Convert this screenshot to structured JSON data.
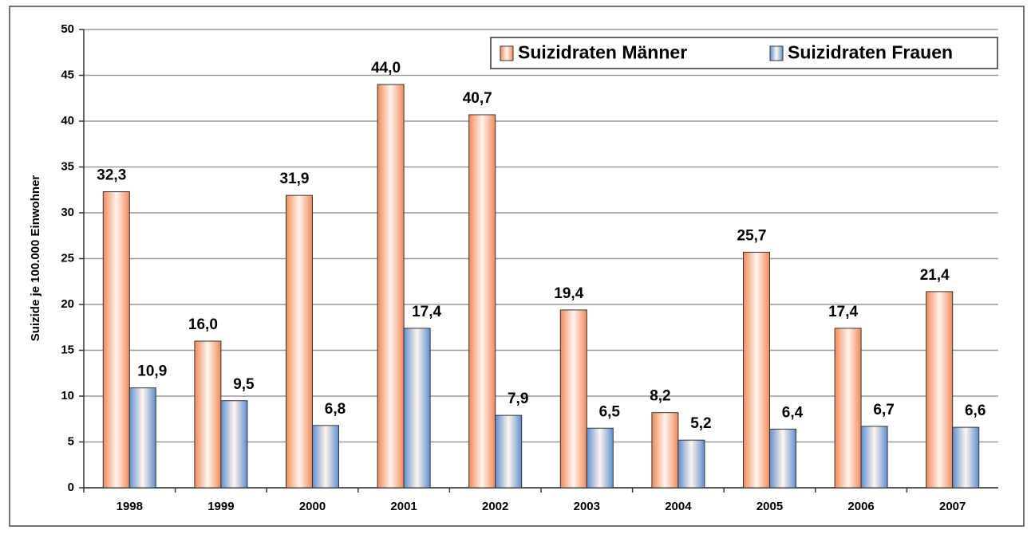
{
  "chart_data": {
    "type": "bar",
    "y_label": "Suizide je 100.000 Einwohner",
    "categories": [
      "1998",
      "1999",
      "2000",
      "2001",
      "2002",
      "2003",
      "2004",
      "2005",
      "2006",
      "2007"
    ],
    "series": [
      {
        "name": "Suizidraten Männer",
        "color": "#f08a5a",
        "values": [
          32.3,
          16.0,
          31.9,
          44.0,
          40.7,
          19.4,
          8.2,
          25.7,
          17.4,
          21.4
        ],
        "value_labels": [
          "32,3",
          "16,0",
          "31,9",
          "44,0",
          "40,7",
          "19,4",
          "8,2",
          "25,7",
          "17,4",
          "21,4"
        ]
      },
      {
        "name": "Suizidraten Frauen",
        "color": "#5f8fd0",
        "values": [
          10.9,
          9.5,
          6.8,
          17.4,
          7.9,
          6.5,
          5.2,
          6.4,
          6.7,
          6.6
        ],
        "value_labels": [
          "10,9",
          "9,5",
          "6,8",
          "17,4",
          "7,9",
          "6,5",
          "5,2",
          "6,4",
          "6,7",
          "6,6"
        ]
      }
    ],
    "ylim": [
      0,
      50
    ],
    "yticks": [
      0,
      5,
      10,
      15,
      20,
      25,
      30,
      35,
      40,
      45,
      50
    ],
    "grid": true,
    "legend": "top-right"
  }
}
